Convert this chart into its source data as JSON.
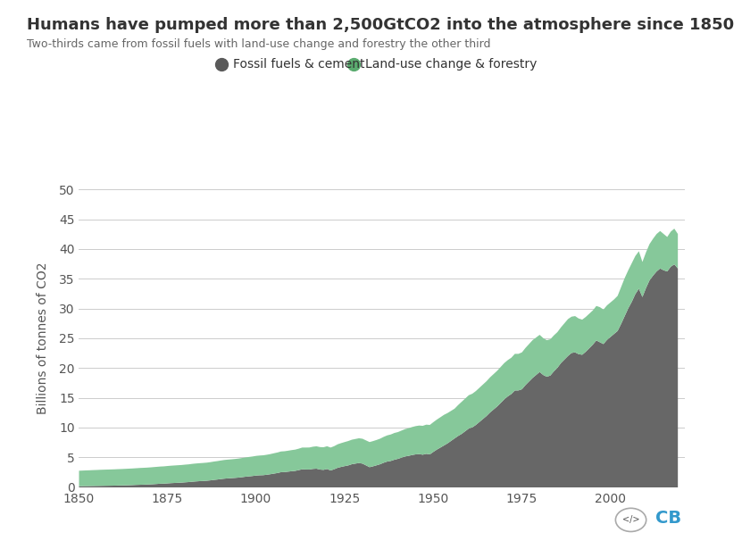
{
  "title": "Humans have pumped more than 2,500GtCO2 into the atmosphere since 1850",
  "subtitle": "Two-thirds came from fossil fuels with land-use change and forestry the other third",
  "ylabel": "Billions of tonnes of CO2",
  "fossil_color": "#676767",
  "luc_color": "#86c89a",
  "luc_edge_color": "#6ab87e",
  "bg_color": "#ffffff",
  "grid_color": "#cccccc",
  "title_color": "#333333",
  "subtitle_color": "#666666",
  "legend_fossil_color": "#5a5a5a",
  "legend_luc_color": "#5aab6f",
  "xlim": [
    1850,
    2021
  ],
  "ylim": [
    0,
    50
  ],
  "yticks": [
    0,
    5,
    10,
    15,
    20,
    25,
    30,
    35,
    40,
    45,
    50
  ],
  "xticks": [
    1850,
    1875,
    1900,
    1925,
    1950,
    1975,
    2000
  ],
  "years": [
    1850,
    1851,
    1852,
    1853,
    1854,
    1855,
    1856,
    1857,
    1858,
    1859,
    1860,
    1861,
    1862,
    1863,
    1864,
    1865,
    1866,
    1867,
    1868,
    1869,
    1870,
    1871,
    1872,
    1873,
    1874,
    1875,
    1876,
    1877,
    1878,
    1879,
    1880,
    1881,
    1882,
    1883,
    1884,
    1885,
    1886,
    1887,
    1888,
    1889,
    1890,
    1891,
    1892,
    1893,
    1894,
    1895,
    1896,
    1897,
    1898,
    1899,
    1900,
    1901,
    1902,
    1903,
    1904,
    1905,
    1906,
    1907,
    1908,
    1909,
    1910,
    1911,
    1912,
    1913,
    1914,
    1915,
    1916,
    1917,
    1918,
    1919,
    1920,
    1921,
    1922,
    1923,
    1924,
    1925,
    1926,
    1927,
    1928,
    1929,
    1930,
    1931,
    1932,
    1933,
    1934,
    1935,
    1936,
    1937,
    1938,
    1939,
    1940,
    1941,
    1942,
    1943,
    1944,
    1945,
    1946,
    1947,
    1948,
    1949,
    1950,
    1951,
    1952,
    1953,
    1954,
    1955,
    1956,
    1957,
    1958,
    1959,
    1960,
    1961,
    1962,
    1963,
    1964,
    1965,
    1966,
    1967,
    1968,
    1969,
    1970,
    1971,
    1972,
    1973,
    1974,
    1975,
    1976,
    1977,
    1978,
    1979,
    1980,
    1981,
    1982,
    1983,
    1984,
    1985,
    1986,
    1987,
    1988,
    1989,
    1990,
    1991,
    1992,
    1993,
    1994,
    1995,
    1996,
    1997,
    1998,
    1999,
    2000,
    2001,
    2002,
    2003,
    2004,
    2005,
    2006,
    2007,
    2008,
    2009,
    2010,
    2011,
    2012,
    2013,
    2014,
    2015,
    2016,
    2017,
    2018,
    2019
  ],
  "fossil_fuels": [
    0.2,
    0.21,
    0.22,
    0.23,
    0.24,
    0.25,
    0.26,
    0.27,
    0.28,
    0.29,
    0.3,
    0.32,
    0.33,
    0.35,
    0.37,
    0.39,
    0.42,
    0.44,
    0.46,
    0.48,
    0.51,
    0.54,
    0.58,
    0.62,
    0.64,
    0.68,
    0.72,
    0.75,
    0.78,
    0.81,
    0.86,
    0.9,
    0.96,
    1.01,
    1.05,
    1.08,
    1.12,
    1.18,
    1.26,
    1.32,
    1.4,
    1.47,
    1.52,
    1.56,
    1.6,
    1.65,
    1.72,
    1.8,
    1.86,
    1.92,
    2.0,
    2.04,
    2.06,
    2.13,
    2.22,
    2.32,
    2.42,
    2.56,
    2.58,
    2.65,
    2.72,
    2.78,
    2.91,
    3.05,
    3.02,
    3.01,
    3.11,
    3.15,
    3.0,
    2.95,
    3.1,
    2.85,
    3.05,
    3.3,
    3.45,
    3.58,
    3.7,
    3.9,
    4.0,
    4.1,
    4.0,
    3.7,
    3.4,
    3.55,
    3.72,
    3.9,
    4.15,
    4.35,
    4.45,
    4.65,
    4.8,
    5.0,
    5.2,
    5.3,
    5.45,
    5.55,
    5.6,
    5.5,
    5.65,
    5.55,
    5.97,
    6.36,
    6.7,
    7.05,
    7.4,
    7.82,
    8.24,
    8.65,
    9.0,
    9.45,
    9.9,
    10.1,
    10.5,
    11.0,
    11.5,
    12.0,
    12.6,
    13.1,
    13.6,
    14.2,
    14.8,
    15.3,
    15.7,
    16.3,
    16.3,
    16.5,
    17.2,
    17.8,
    18.4,
    18.9,
    19.4,
    18.9,
    18.6,
    18.8,
    19.5,
    20.1,
    20.9,
    21.5,
    22.1,
    22.6,
    22.7,
    22.4,
    22.3,
    22.8,
    23.4,
    24.0,
    24.7,
    24.4,
    24.1,
    24.8,
    25.3,
    25.8,
    26.3,
    27.5,
    28.8,
    30.1,
    31.2,
    32.5,
    33.4,
    32.0,
    33.5,
    34.8,
    35.6,
    36.3,
    36.8,
    36.5,
    36.3,
    37.1,
    37.5,
    36.8
  ],
  "land_use_change": [
    2.6,
    2.62,
    2.64,
    2.65,
    2.67,
    2.68,
    2.7,
    2.71,
    2.72,
    2.73,
    2.74,
    2.75,
    2.76,
    2.77,
    2.78,
    2.79,
    2.8,
    2.82,
    2.83,
    2.84,
    2.85,
    2.87,
    2.88,
    2.89,
    2.9,
    2.92,
    2.93,
    2.94,
    2.95,
    2.96,
    2.97,
    2.98,
    3.0,
    3.01,
    3.02,
    3.03,
    3.04,
    3.06,
    3.08,
    3.1,
    3.12,
    3.14,
    3.15,
    3.16,
    3.18,
    3.2,
    3.22,
    3.24,
    3.26,
    3.28,
    3.3,
    3.32,
    3.34,
    3.36,
    3.38,
    3.42,
    3.45,
    3.48,
    3.5,
    3.52,
    3.55,
    3.57,
    3.6,
    3.65,
    3.68,
    3.7,
    3.73,
    3.76,
    3.78,
    3.8,
    3.82,
    3.85,
    3.88,
    3.95,
    4.0,
    4.05,
    4.1,
    4.12,
    4.14,
    4.16,
    4.18,
    4.2,
    4.22,
    4.24,
    4.26,
    4.3,
    4.35,
    4.4,
    4.45,
    4.5,
    4.5,
    4.55,
    4.6,
    4.65,
    4.7,
    4.75,
    4.8,
    4.85,
    4.9,
    4.95,
    5.0,
    5.05,
    5.1,
    5.15,
    5.1,
    5.05,
    5.0,
    5.2,
    5.4,
    5.5,
    5.6,
    5.65,
    5.7,
    5.75,
    5.8,
    5.85,
    5.9,
    5.95,
    6.0,
    6.05,
    6.1,
    6.1,
    6.1,
    6.15,
    6.15,
    6.2,
    6.25,
    6.3,
    6.35,
    6.3,
    6.25,
    6.2,
    6.15,
    6.1,
    6.05,
    6.0,
    6.0,
    6.1,
    6.2,
    6.1,
    6.1,
    6.0,
    5.9,
    5.85,
    5.8,
    5.75,
    5.8,
    5.9,
    5.8,
    5.8,
    5.8,
    5.8,
    5.9,
    6.2,
    6.4,
    6.4,
    6.5,
    6.4,
    6.3,
    5.9,
    6.0,
    6.1,
    6.2,
    6.3,
    6.3,
    6.1,
    5.8,
    5.9,
    6.0,
    5.8
  ]
}
